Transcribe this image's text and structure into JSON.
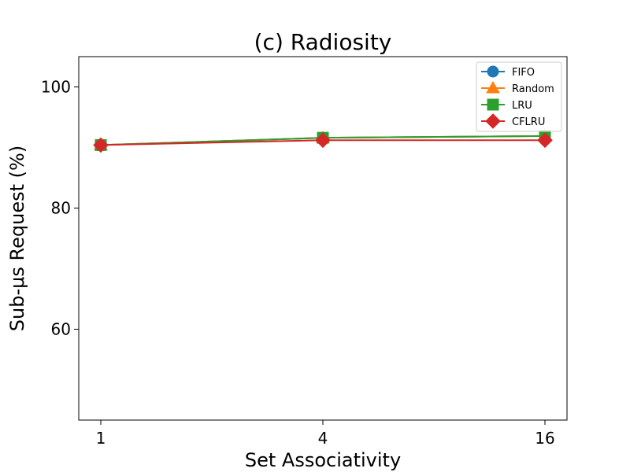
{
  "chart_data": {
    "type": "line",
    "title": "(c) Radiosity",
    "xlabel": "Set Associativity",
    "ylabel": "Sub-μs Request (%)",
    "categories": [
      "1",
      "4",
      "16"
    ],
    "ylim": [
      45,
      105
    ],
    "yticks": [
      60,
      80,
      100
    ],
    "legend_position": "top-right",
    "series": [
      {
        "name": "FIFO",
        "values": [
          90.4,
          91.6,
          91.9
        ],
        "color": "#1f77b4",
        "marker": "circle"
      },
      {
        "name": "Random",
        "values": [
          90.4,
          91.6,
          91.9
        ],
        "color": "#ff7f0e",
        "marker": "triangle"
      },
      {
        "name": "LRU",
        "values": [
          90.4,
          91.6,
          91.9
        ],
        "color": "#2ca02c",
        "marker": "square"
      },
      {
        "name": "CFLRU",
        "values": [
          90.4,
          91.2,
          91.2
        ],
        "color": "#d62728",
        "marker": "diamond"
      }
    ]
  }
}
